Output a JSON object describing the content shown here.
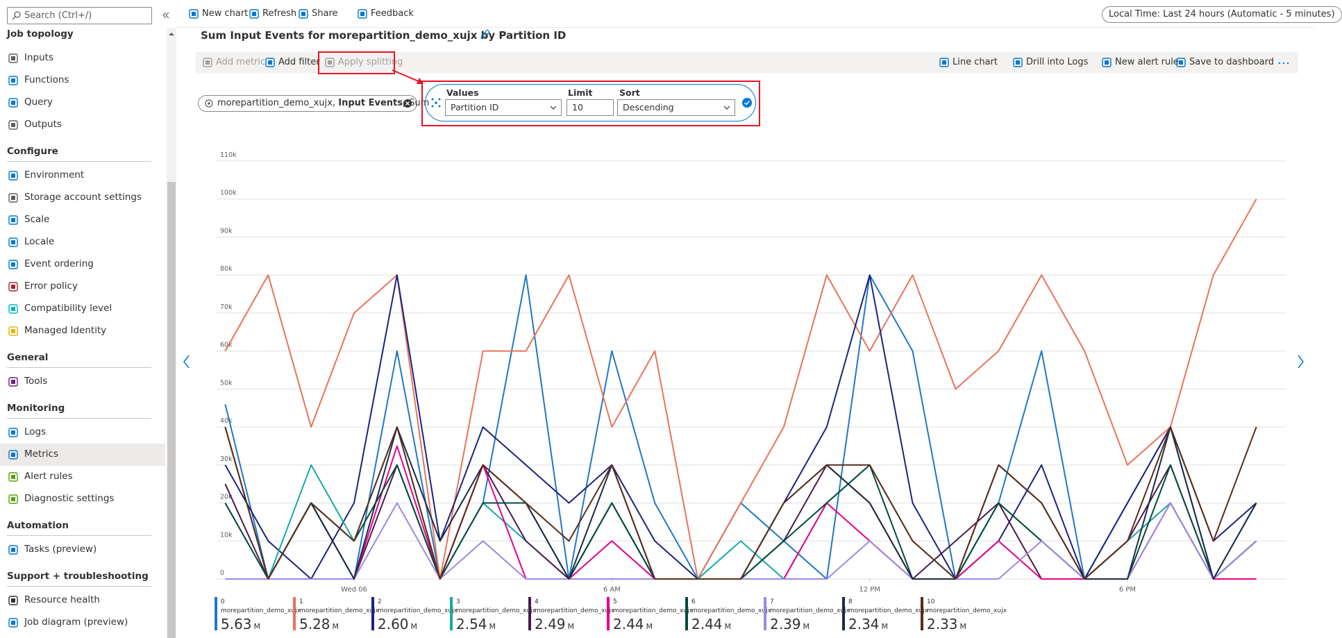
{
  "sidebar": {
    "search_placeholder": "Search (Ctrl+/)",
    "sections": [
      {
        "title": "Job topology",
        "items": [
          "Inputs",
          "Functions",
          "Query",
          "Outputs"
        ]
      },
      {
        "title": "Configure",
        "items": [
          "Environment",
          "Storage account settings",
          "Scale",
          "Locale",
          "Event ordering",
          "Error policy",
          "Compatibility level",
          "Managed Identity"
        ]
      },
      {
        "title": "General",
        "items": [
          "Tools"
        ]
      },
      {
        "title": "Monitoring",
        "items": [
          "Logs",
          "Metrics",
          "Alert rules",
          "Diagnostic settings"
        ]
      },
      {
        "title": "Automation",
        "items": [
          "Tasks (preview)"
        ]
      },
      {
        "title": "Support + troubleshooting",
        "items": [
          "Resource health",
          "Job diagram (preview)"
        ]
      }
    ]
  },
  "toolbar": {
    "items": [
      "New chart",
      "Refresh",
      "Share",
      "Feedback"
    ],
    "time_range": "Local Time: Last 24 hours (Automatic - 5 minutes)"
  },
  "chart_title": "Sum Input Events for morepartition_demo_xujx by Partition ID",
  "chart_toolbar": {
    "left": [
      "Add metric",
      "Add filter",
      "Apply splitting"
    ],
    "right": [
      "Line chart",
      "Drill into Logs",
      "New alert rule",
      "Save to dashboard"
    ]
  },
  "metric_pill": {
    "resource": "morepartition_demo_xujx,",
    "metric": "Input Events,",
    "aggregation": "Sum"
  },
  "splitting": {
    "values_label": "Values",
    "values": "Partition ID",
    "limit_label": "Limit",
    "limit": "10",
    "sort_label": "Sort",
    "sort": "Descending"
  },
  "chart_data": {
    "type": "line",
    "x": [
      -3,
      -2,
      -1,
      0,
      1,
      2,
      3,
      4,
      5,
      6,
      7,
      8,
      9,
      10,
      11,
      12,
      13,
      14,
      15,
      16,
      17,
      18,
      19,
      20,
      21
    ],
    "xlim": [
      -3.2,
      21.2
    ],
    "xticks": [
      {
        "value": 0,
        "label": "Wed 06"
      },
      {
        "value": 6,
        "label": "6 AM"
      },
      {
        "value": 12,
        "label": "12 PM"
      },
      {
        "value": 18,
        "label": "6 PM"
      }
    ],
    "ylim": [
      0,
      110000
    ],
    "yticks": [
      {
        "value": 0,
        "label": "0"
      },
      {
        "value": 10000,
        "label": "10k"
      },
      {
        "value": 20000,
        "label": "20k"
      },
      {
        "value": 30000,
        "label": "30k"
      },
      {
        "value": 40000,
        "label": "40k"
      },
      {
        "value": 50000,
        "label": "50k"
      },
      {
        "value": 60000,
        "label": "60k"
      },
      {
        "value": 70000,
        "label": "70k"
      },
      {
        "value": 80000,
        "label": "80k"
      },
      {
        "value": 90000,
        "label": "90k"
      },
      {
        "value": 100000,
        "label": "100k"
      },
      {
        "value": 110000,
        "label": "110k"
      }
    ],
    "grid": true,
    "series": [
      {
        "name": "0",
        "color": "#1f77c8",
        "values": [
          46000,
          0,
          20000,
          0,
          60000,
          0,
          20000,
          80000,
          0,
          60000,
          20000,
          0,
          20000,
          10000,
          0,
          80000,
          60000,
          0,
          20000,
          60000,
          0,
          20000,
          40000,
          0,
          20000
        ]
      },
      {
        "name": "1",
        "color": "#e8735a",
        "values": [
          60000,
          80000,
          40000,
          70000,
          80000,
          0,
          60000,
          60000,
          80000,
          40000,
          60000,
          0,
          20000,
          40000,
          80000,
          60000,
          80000,
          50000,
          60000,
          80000,
          60000,
          30000,
          40000,
          80000,
          100000
        ]
      },
      {
        "name": "2",
        "color": "#1a237e",
        "values": [
          30000,
          10000,
          0,
          20000,
          80000,
          10000,
          40000,
          30000,
          20000,
          30000,
          10000,
          0,
          0,
          20000,
          40000,
          80000,
          20000,
          0,
          10000,
          30000,
          0,
          20000,
          40000,
          10000,
          20000
        ]
      },
      {
        "name": "3",
        "color": "#17a8a8",
        "values": [
          20000,
          0,
          30000,
          10000,
          40000,
          0,
          20000,
          10000,
          0,
          20000,
          0,
          0,
          10000,
          0,
          20000,
          30000,
          10000,
          0,
          20000,
          10000,
          0,
          10000,
          20000,
          0,
          10000
        ]
      },
      {
        "name": "4",
        "color": "#4a1a4a",
        "values": [
          25000,
          0,
          20000,
          0,
          30000,
          0,
          30000,
          10000,
          0,
          20000,
          0,
          0,
          0,
          10000,
          30000,
          20000,
          0,
          10000,
          20000,
          0,
          0,
          10000,
          30000,
          0,
          10000
        ]
      },
      {
        "name": "5",
        "color": "#e3008c",
        "values": [
          0,
          0,
          0,
          0,
          35000,
          0,
          30000,
          0,
          0,
          10000,
          0,
          0,
          0,
          0,
          20000,
          10000,
          0,
          0,
          10000,
          0,
          0,
          0,
          20000,
          0,
          0
        ]
      },
      {
        "name": "6",
        "color": "#004b3c",
        "values": [
          20000,
          0,
          20000,
          10000,
          30000,
          0,
          20000,
          20000,
          0,
          20000,
          0,
          0,
          0,
          10000,
          20000,
          30000,
          0,
          0,
          20000,
          10000,
          0,
          0,
          30000,
          0,
          10000
        ]
      },
      {
        "name": "7",
        "color": "#9b8ae0",
        "values": [
          0,
          0,
          0,
          0,
          20000,
          0,
          10000,
          0,
          0,
          0,
          0,
          0,
          0,
          0,
          0,
          10000,
          0,
          0,
          0,
          10000,
          0,
          0,
          20000,
          0,
          10000
        ]
      },
      {
        "name": "8",
        "color": "#1c2a44",
        "values": [
          40000,
          0,
          20000,
          0,
          40000,
          10000,
          30000,
          20000,
          0,
          30000,
          0,
          0,
          0,
          20000,
          30000,
          20000,
          0,
          0,
          30000,
          20000,
          0,
          0,
          40000,
          0,
          20000
        ]
      },
      {
        "name": "10",
        "color": "#5a2d1a",
        "values": [
          40000,
          0,
          20000,
          10000,
          40000,
          0,
          30000,
          20000,
          10000,
          30000,
          0,
          0,
          0,
          20000,
          30000,
          30000,
          10000,
          0,
          30000,
          20000,
          0,
          10000,
          40000,
          10000,
          40000
        ]
      }
    ]
  },
  "legend": [
    {
      "resource": "morepartition_demo_xujx",
      "total": 5.63,
      "unit": "M"
    },
    {
      "resource": "morepartition_demo_xujx",
      "total": 5.28,
      "unit": "M"
    },
    {
      "resource": "morepartition_demo_xujx",
      "total": "2.60",
      "unit": "M"
    },
    {
      "resource": "morepartition_demo_xujx",
      "total": 2.54,
      "unit": "M"
    },
    {
      "resource": "morepartition_demo_xujx",
      "total": 2.49,
      "unit": "M"
    },
    {
      "resource": "morepartition_demo_xujx",
      "total": 2.44,
      "unit": "M"
    },
    {
      "resource": "morepartition_demo_xujx",
      "total": 2.44,
      "unit": "M"
    },
    {
      "resource": "morepartition_demo_xujx",
      "total": 2.39,
      "unit": "M"
    },
    {
      "resource": "morepartition_demo_xujx",
      "total": 2.34,
      "unit": "M"
    },
    {
      "resource": "morepartition_demo_xujx",
      "total": 2.33,
      "unit": "M"
    }
  ]
}
